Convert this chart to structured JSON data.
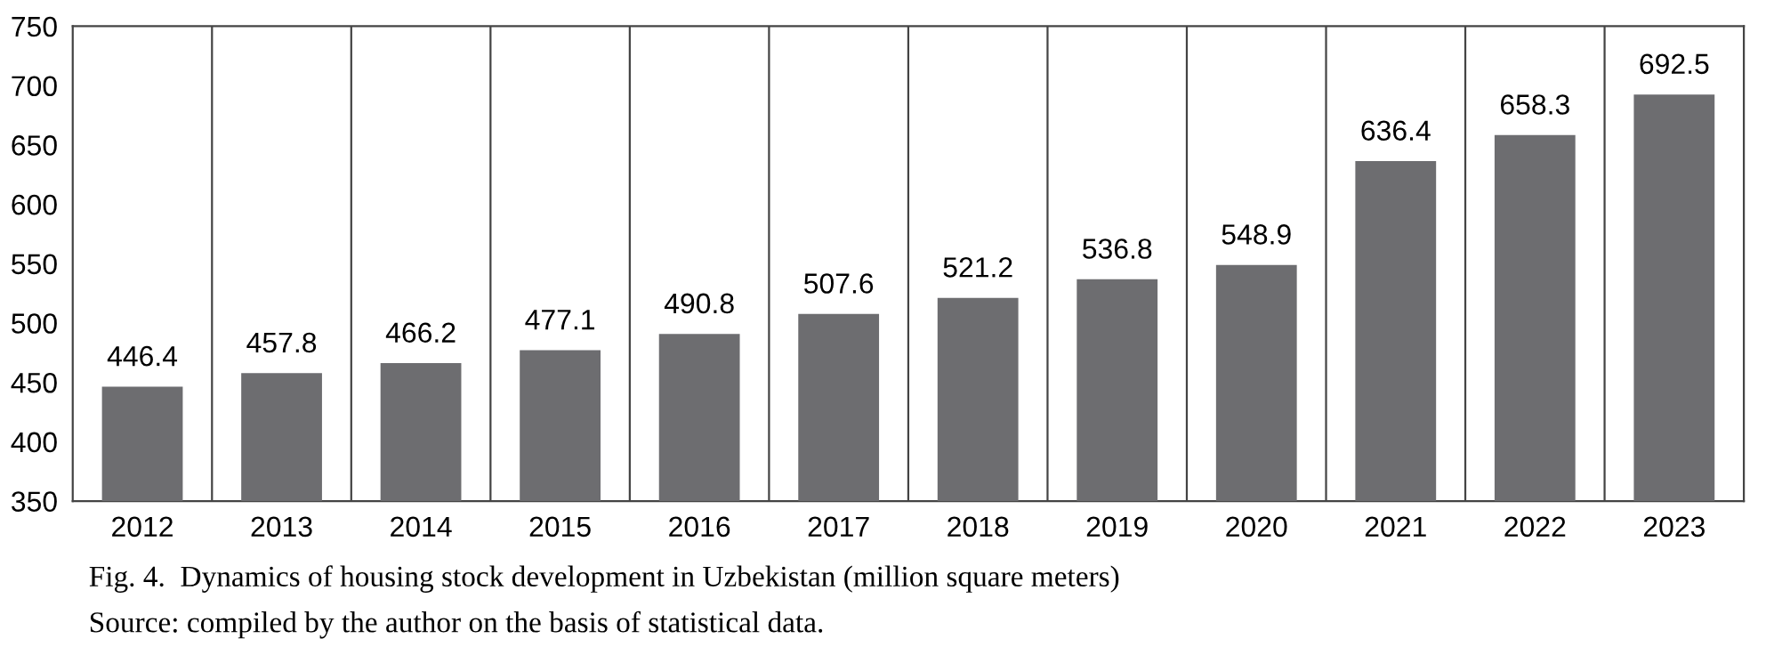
{
  "chart_data": {
    "type": "bar",
    "title": "Fig. 4.  Dynamics of housing stock development in Uzbekistan (million square meters)",
    "annotations": [
      "Source: compiled by the author on the basis of statistical data."
    ],
    "categories": [
      "2012",
      "2013",
      "2014",
      "2015",
      "2016",
      "2017",
      "2018",
      "2019",
      "2020",
      "2021",
      "2022",
      "2023"
    ],
    "values": [
      446.4,
      457.8,
      466.2,
      477.1,
      490.8,
      507.6,
      521.2,
      536.8,
      548.9,
      636.4,
      658.3,
      692.5
    ],
    "color": "#6d6d70",
    "ylim": [
      350,
      750
    ],
    "yticks": [
      350,
      400,
      450,
      500,
      550,
      600,
      650,
      700,
      750
    ],
    "data_labels": true,
    "grid": "x",
    "legend": false
  }
}
